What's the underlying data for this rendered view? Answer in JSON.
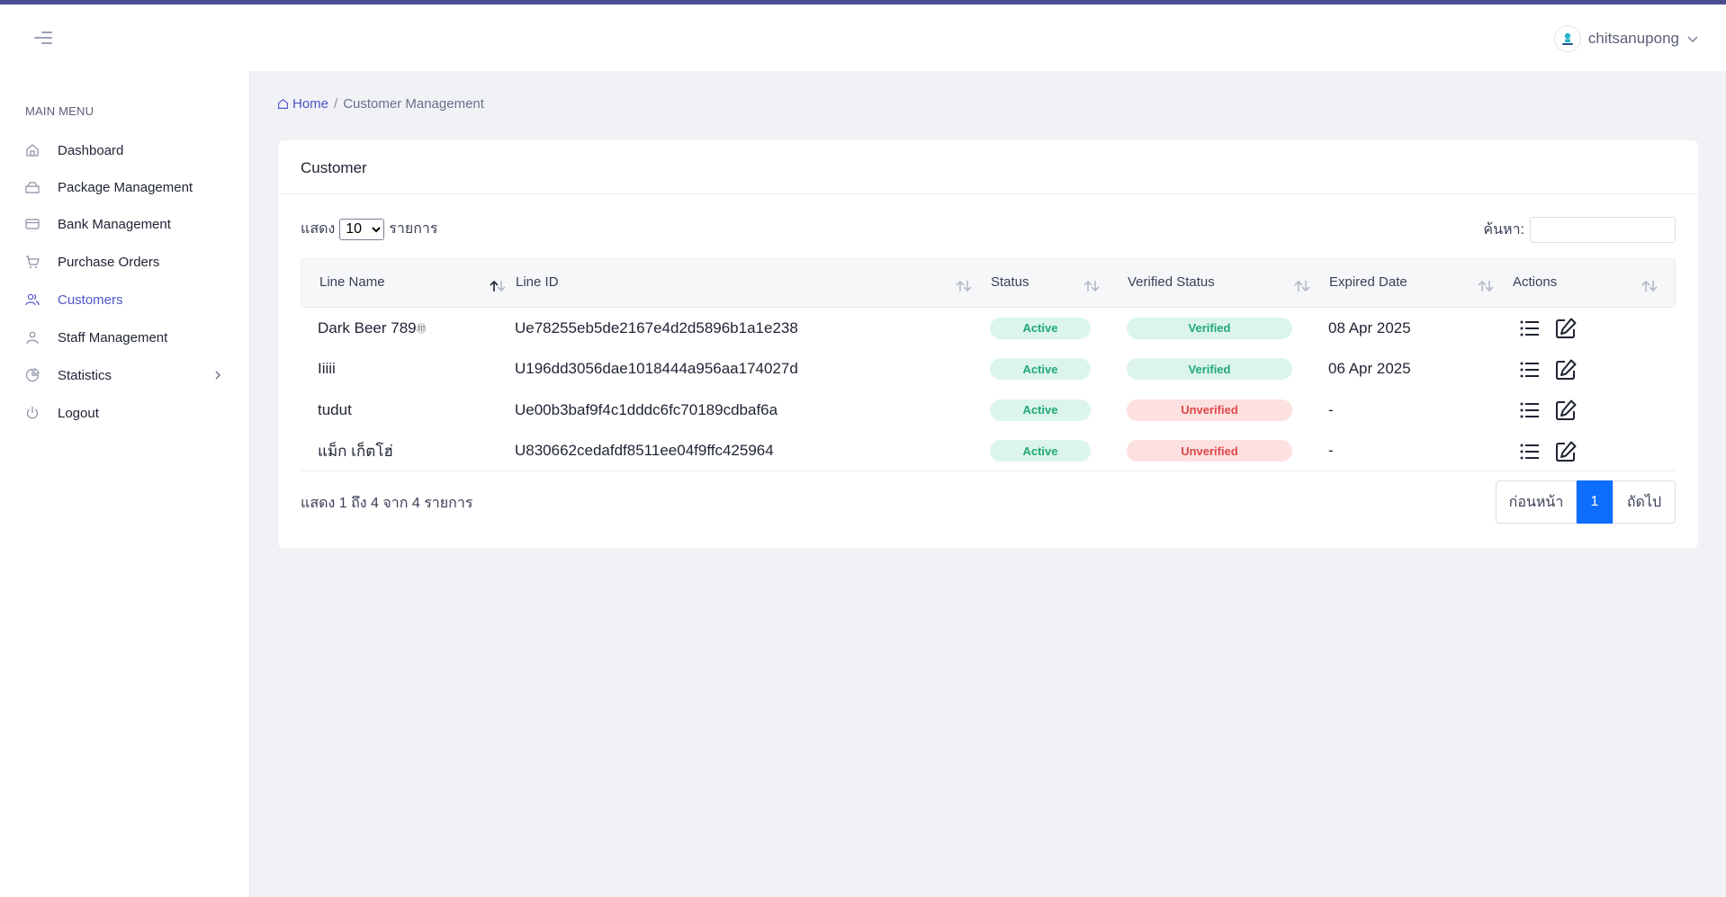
{
  "header": {
    "username": "chitsanupong"
  },
  "sidebar": {
    "title": "MAIN MENU",
    "items": [
      {
        "label": "Dashboard",
        "icon": "home-icon"
      },
      {
        "label": "Package Management",
        "icon": "package-icon"
      },
      {
        "label": "Bank Management",
        "icon": "credit-card-icon"
      },
      {
        "label": "Purchase Orders",
        "icon": "cart-icon"
      },
      {
        "label": "Customers",
        "icon": "users-icon",
        "active": true
      },
      {
        "label": "Staff Management",
        "icon": "user-icon"
      },
      {
        "label": "Statistics",
        "icon": "pie-chart-icon"
      },
      {
        "label": "Logout",
        "icon": "power-icon"
      }
    ]
  },
  "breadcrumb": {
    "home": "Home",
    "separator": "/",
    "current": "Customer Management"
  },
  "card": {
    "title": "Customer",
    "length_prefix": "แสดง",
    "length_value": "10",
    "length_options": [
      "10"
    ],
    "length_suffix": "รายการ",
    "search_label": "ค้นหา:",
    "search_value": ""
  },
  "table": {
    "columns": [
      "Line Name",
      "Line ID",
      "Status",
      "Verified Status",
      "Expired Date",
      "Actions"
    ],
    "rows": [
      {
        "line_name": "Dark Beer 789",
        "line_name_suffix": "㊞",
        "line_id": "Ue78255eb5de2167e4d2d5896b1a1e238",
        "status": "Active",
        "verified": "Verified",
        "expired": "08 Apr 2025"
      },
      {
        "line_name": "Iiiii",
        "line_name_suffix": "",
        "line_id": "U196dd3056dae1018444a956aa174027d",
        "status": "Active",
        "verified": "Verified",
        "expired": "06 Apr 2025"
      },
      {
        "line_name": "tudut",
        "line_name_suffix": "",
        "line_id": "Ue00b3baf9f4c1dddc6fc70189cdbaf6a",
        "status": "Active",
        "verified": "Unverified",
        "expired": "-"
      },
      {
        "line_name": "แม็ก เก็ตโฮ่",
        "line_name_suffix": "",
        "line_id": "U830662cedafdf8511ee04f9ffc425964",
        "status": "Active",
        "verified": "Unverified",
        "expired": "-"
      }
    ],
    "info": "แสดง 1 ถึง 4 จาก 4 รายการ"
  },
  "pagination": {
    "prev": "ก่อนหน้า",
    "page": "1",
    "next": "ถัดไป"
  },
  "colors": {
    "accent": "#4f55c9",
    "active_badge_bg": "#dbf5ec",
    "active_badge_text": "#22a874",
    "unverified_bg": "#fde0e0",
    "unverified_text": "#e0484a",
    "page_active": "#0d6efd"
  }
}
